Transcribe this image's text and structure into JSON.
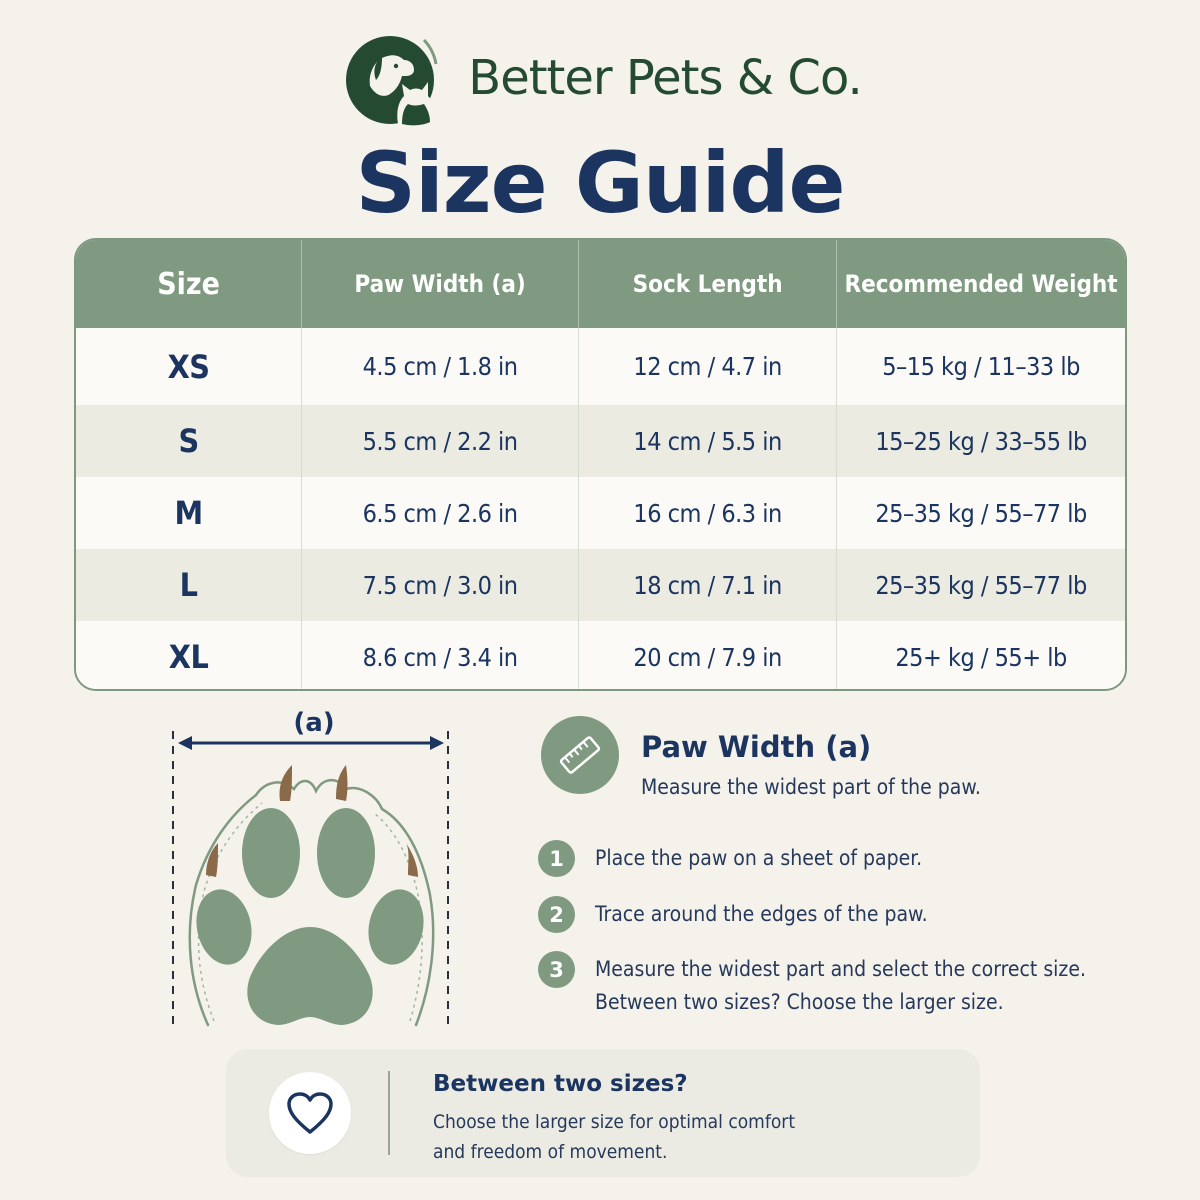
{
  "brand": {
    "name": "Better Pets & Co.",
    "logo_icon": "dog-cat-logo-icon"
  },
  "page": {
    "title": "Size Guide"
  },
  "table": {
    "headers": [
      "Size",
      "Paw Width (a)",
      "Sock Length",
      "Recommended Weight"
    ],
    "rows": [
      [
        "XS",
        "4.5 cm / 1.8 in",
        "12 cm / 4.7 in",
        "5–15 kg / 11–33 lb"
      ],
      [
        "S",
        "5.5 cm / 2.2 in",
        "14 cm / 5.5 in",
        "15–25 kg / 33–55 lb"
      ],
      [
        "M",
        "6.5 cm / 2.6 in",
        "16 cm / 6.3 in",
        "25–35 kg / 55–77 lb"
      ],
      [
        "L",
        "7.5 cm / 3.0 in",
        "18 cm / 7.1 in",
        "25–35 kg / 55–77 lb"
      ],
      [
        "XL",
        "8.6 cm / 3.4 in",
        "20 cm / 7.9 in",
        "25+ kg / 55+ lb"
      ]
    ]
  },
  "diagram": {
    "label": "(a)",
    "icon": "paw-print-icon"
  },
  "instructions": {
    "icon": "ruler-icon",
    "title": "Paw Width (a)",
    "subtitle": "Measure the widest part of the paw.",
    "steps": [
      {
        "number": "1",
        "lines": [
          "Place the paw on a sheet of paper."
        ]
      },
      {
        "number": "2",
        "lines": [
          "Trace around the edges of the paw."
        ]
      },
      {
        "number": "3",
        "lines": [
          "Measure the widest part and select the correct size.",
          "Between two sizes? Choose the larger size."
        ]
      }
    ]
  },
  "tip": {
    "icon": "heart-icon",
    "title": "Between two sizes?",
    "lines": [
      "Choose the larger size for optimal comfort",
      "and freedom of movement."
    ]
  },
  "colors": {
    "sage": "#7f9a80",
    "navy": "#1b3560",
    "forest": "#254a32",
    "background": "#f5f2ec"
  }
}
